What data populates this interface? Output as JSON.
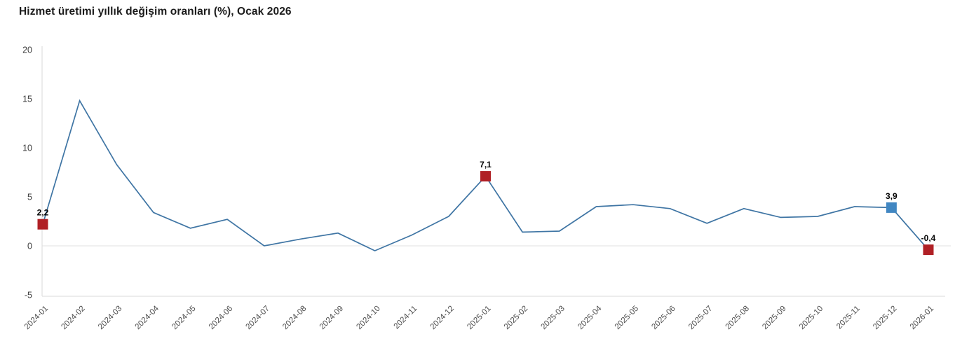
{
  "title": "Hizmet üretimi yıllık değişim oranları (%), Ocak 2026",
  "chart_data": {
    "type": "line",
    "title": "Hizmet üretimi yıllık değişim oranları (%), Ocak 2026",
    "categories": [
      "2024-01",
      "2024-02",
      "2024-03",
      "2024-04",
      "2024-05",
      "2024-06",
      "2024-07",
      "2024-08",
      "2024-09",
      "2024-10",
      "2024-11",
      "2024-12",
      "2025-01",
      "2025-02",
      "2025-03",
      "2025-04",
      "2025-05",
      "2025-06",
      "2025-07",
      "2025-08",
      "2025-09",
      "2025-10",
      "2025-11",
      "2025-12",
      "2026-01"
    ],
    "values": [
      2.2,
      14.8,
      8.3,
      3.4,
      1.8,
      2.7,
      0.0,
      0.7,
      1.3,
      -0.5,
      1.1,
      3.0,
      7.1,
      1.4,
      1.5,
      4.0,
      4.2,
      3.8,
      2.3,
      3.8,
      2.9,
      3.0,
      4.0,
      3.9,
      -0.4
    ],
    "xlabel": "",
    "ylabel": "",
    "ylim": [
      -5,
      20
    ],
    "yticks": [
      20,
      15,
      10,
      5,
      0,
      -5
    ],
    "legend": "none",
    "grid": "zero-baseline-only",
    "line_color": "#3f75a4",
    "labeled_points": [
      {
        "category": "2024-01",
        "value": 2.2,
        "label": "2,2",
        "marker_color": "#b02025"
      },
      {
        "category": "2025-01",
        "value": 7.1,
        "label": "7,1",
        "marker_color": "#b02025"
      },
      {
        "category": "2025-12",
        "value": 3.9,
        "label": "3,9",
        "marker_color": "#4187c2"
      },
      {
        "category": "2026-01",
        "value": -0.4,
        "label": "-0,4",
        "marker_color": "#b02025"
      }
    ]
  },
  "colors": {
    "background": "#ffffff",
    "axis_line": "#d9d9d9",
    "zero_gridline": "#e2e2e2",
    "y_label": "#3d3d3d",
    "x_label": "#4d4d4d",
    "data_label": "#000000",
    "title": "#1b1b1b"
  }
}
